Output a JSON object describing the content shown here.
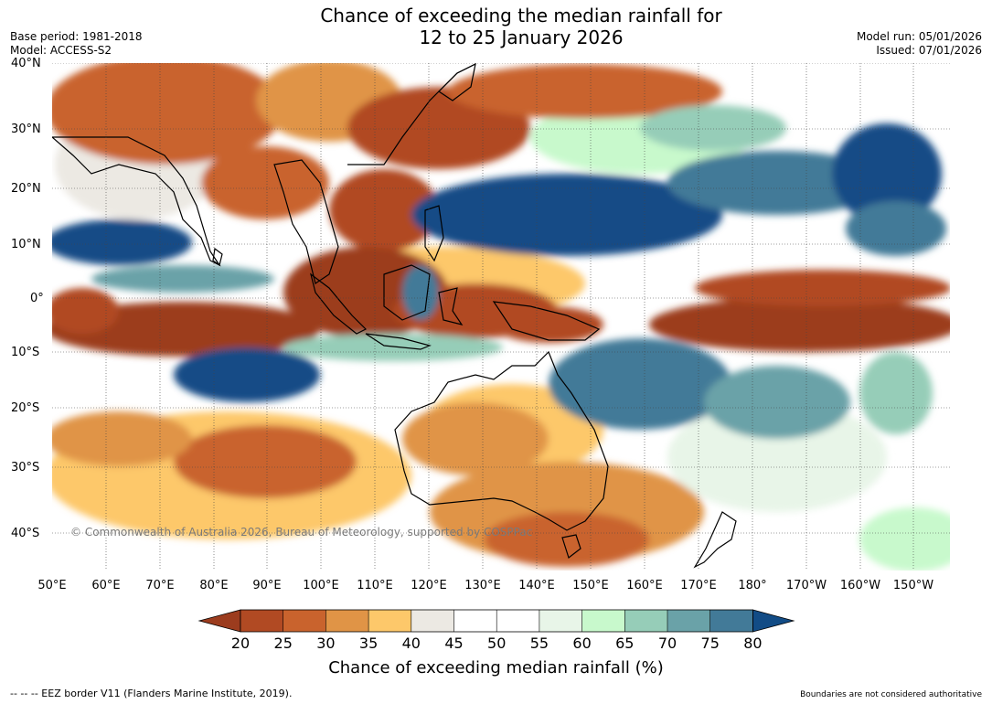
{
  "title": {
    "line1": "Chance of exceeding the median rainfall for",
    "line2": "12 to 25 January 2026"
  },
  "meta_left": {
    "base_period": "Base period: 1981-2018",
    "model": "Model: ACCESS-S2"
  },
  "meta_right": {
    "model_run": "Model run: 05/01/2026",
    "issued": "Issued: 07/01/2026"
  },
  "map": {
    "latitude_labels": [
      "40°N",
      "30°N",
      "20°N",
      "10°N",
      "0°",
      "10°S",
      "20°S",
      "30°S",
      "40°S"
    ],
    "longitude_labels": [
      "50°E",
      "60°E",
      "70°E",
      "80°E",
      "90°E",
      "100°E",
      "110°E",
      "120°E",
      "130°E",
      "140°E",
      "150°E",
      "160°E",
      "170°E",
      "180°",
      "170°W",
      "160°W",
      "150°W"
    ],
    "copyright": "© Commonwealth of Australia 2026, Bureau of Meteorology, supported by COSPPac"
  },
  "colorbar": {
    "label": "Chance of exceeding median rainfall (%)",
    "ticks": [
      "20",
      "25",
      "30",
      "35",
      "40",
      "45",
      "50",
      "55",
      "60",
      "65",
      "70",
      "75",
      "80"
    ],
    "colors": {
      "below20": "#9c3c1e",
      "c20_25": "#b14a23",
      "c25_30": "#c9632d",
      "c30_35": "#e09446",
      "c35_40": "#fdc86a",
      "c40_45": "#ece9e3",
      "c45_50": "#ffffff",
      "c50_55": "#ffffff",
      "c55_60": "#e8f5e8",
      "c60_65": "#c8f9cc",
      "c65_70": "#96cdb8",
      "c70_75": "#6aa2a8",
      "c75_80": "#427a98",
      "above80": "#124c86"
    }
  },
  "footer": {
    "eez": "--  --  -- EEZ border V11 (Flanders Marine Institute, 2019).",
    "disclaimer": "Boundaries are not considered authoritative"
  }
}
